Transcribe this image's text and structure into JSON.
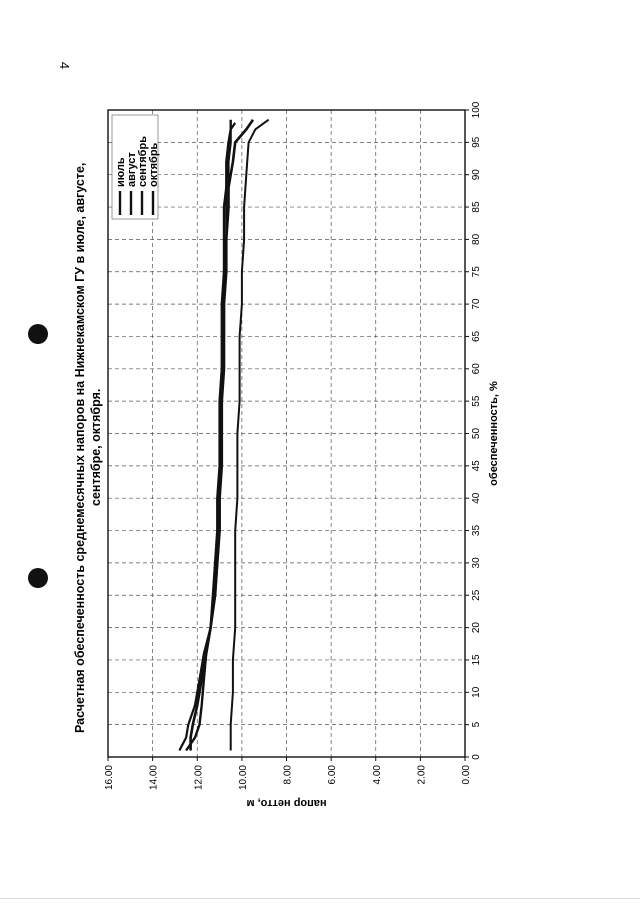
{
  "page": {
    "number": "4"
  },
  "colors": {
    "series": "#111111",
    "grid": "#555555",
    "frame": "#111111"
  },
  "chart_data": {
    "type": "line",
    "title": "Расчетная обеспеченность среднемесячных напоров на Нижнекамском ГУ в июле, августе, сентябре, октября.",
    "title_lines": [
      "Расчетная обеспеченность среднемесячных напоров на Нижнекамском ГУ в июле, августе,",
      "сентябре, октября."
    ],
    "xlabel": "обеспеченность, %",
    "ylabel": "напор нетто, м",
    "xlim": [
      0,
      100
    ],
    "ylim": [
      0,
      16
    ],
    "xticks": [
      "0",
      "5",
      "10",
      "15",
      "20",
      "25",
      "30",
      "35",
      "40",
      "45",
      "50",
      "55",
      "60",
      "65",
      "70",
      "75",
      "80",
      "85",
      "90",
      "95",
      "100"
    ],
    "yticks": [
      "0.00",
      "2.00",
      "4.00",
      "6.00",
      "8.00",
      "10.00",
      "12.00",
      "14.00",
      "16.00"
    ],
    "grid": true,
    "legend": "top-right",
    "rotation": "page rotated 90° counter-clockwise",
    "series": [
      {
        "name": "июль",
        "x": [
          1,
          3,
          5,
          8,
          12,
          16,
          20,
          25,
          30,
          35,
          40,
          45,
          50,
          55,
          60,
          65,
          70,
          75,
          80,
          85,
          88,
          90,
          92,
          95,
          97,
          98.5
        ],
        "y": [
          12.3,
          12.3,
          12.2,
          12.0,
          11.8,
          11.6,
          11.4,
          11.2,
          11.1,
          11.0,
          11.0,
          10.9,
          10.9,
          10.9,
          10.8,
          10.8,
          10.8,
          10.7,
          10.7,
          10.6,
          10.6,
          10.5,
          10.4,
          10.3,
          9.8,
          9.5
        ]
      },
      {
        "name": "август",
        "x": [
          1,
          3,
          5,
          8,
          12,
          16,
          20,
          25,
          30,
          35,
          40,
          45,
          50,
          55,
          60,
          65,
          70,
          75,
          80,
          85,
          88,
          90,
          92,
          95,
          97,
          98
        ],
        "y": [
          12.8,
          12.5,
          12.4,
          12.1,
          11.9,
          11.7,
          11.4,
          11.2,
          11.1,
          11.0,
          11.0,
          11.0,
          10.9,
          10.9,
          10.9,
          10.8,
          10.8,
          10.8,
          10.7,
          10.7,
          10.7,
          10.6,
          10.6,
          10.5,
          10.5,
          10.3
        ]
      },
      {
        "name": "сентябрь",
        "x": [
          1,
          3,
          5,
          8,
          12,
          16,
          20,
          25,
          30,
          35,
          40,
          45,
          50,
          55,
          60,
          65,
          70,
          75,
          80,
          85,
          88,
          90,
          92,
          95,
          97,
          98.5
        ],
        "y": [
          12.5,
          12.1,
          11.9,
          11.8,
          11.7,
          11.6,
          11.4,
          11.3,
          11.2,
          11.1,
          11.1,
          11.0,
          11.0,
          11.0,
          10.9,
          10.9,
          10.9,
          10.8,
          10.8,
          10.8,
          10.7,
          10.7,
          10.7,
          10.6,
          10.5,
          10.5
        ]
      },
      {
        "name": "октябрь",
        "x": [
          1,
          5,
          10,
          15,
          20,
          25,
          30,
          35,
          40,
          45,
          50,
          55,
          60,
          65,
          70,
          75,
          80,
          85,
          90,
          95,
          97,
          98.5
        ],
        "y": [
          10.5,
          10.5,
          10.4,
          10.4,
          10.3,
          10.3,
          10.3,
          10.3,
          10.2,
          10.2,
          10.2,
          10.1,
          10.1,
          10.1,
          10.0,
          10.0,
          9.9,
          9.9,
          9.8,
          9.7,
          9.4,
          8.8
        ]
      }
    ]
  }
}
